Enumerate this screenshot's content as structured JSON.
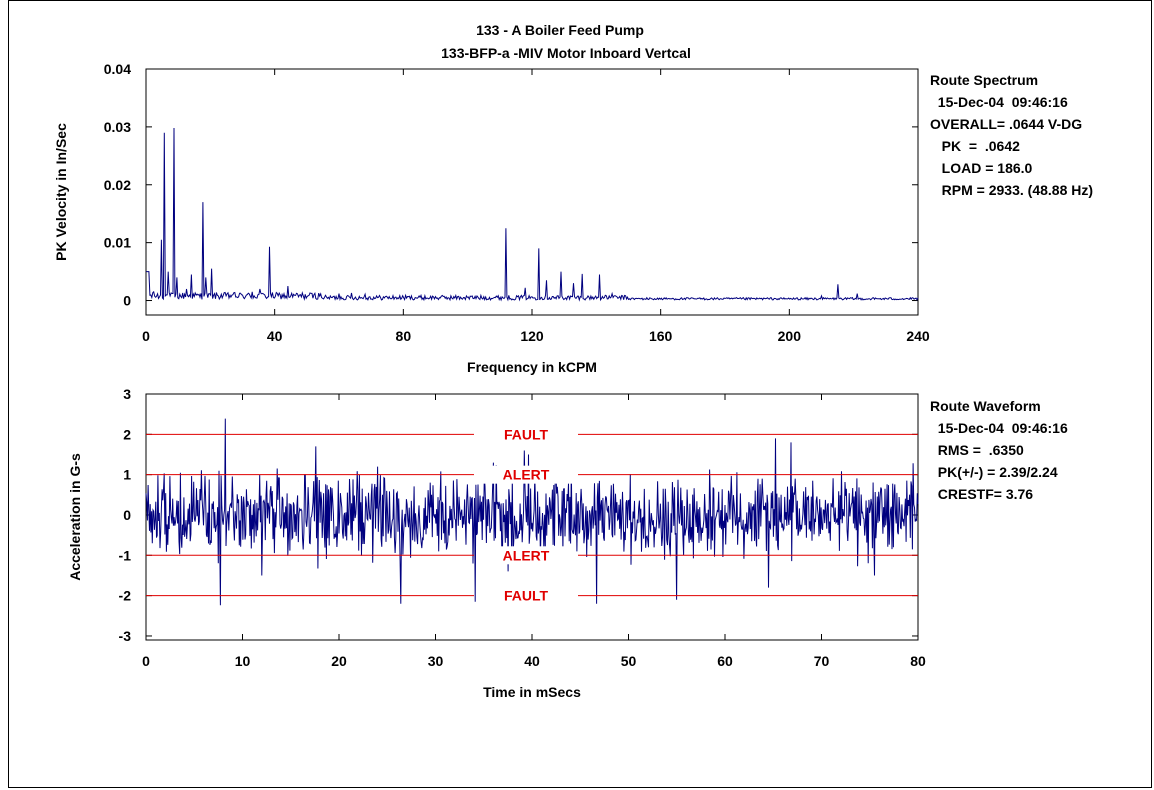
{
  "title_line1": "133  - A Boiler Feed Pump",
  "title_line2": "133-BFP-a -MIV   Motor Inboard Vertcal",
  "colors": {
    "trace": "#00007f",
    "limit": "#e00000",
    "axis": "#000000"
  },
  "chart_data": [
    {
      "type": "line",
      "name": "spectrum",
      "xlabel": "Frequency in kCPM",
      "ylabel": "PK Velocity in In/Sec",
      "xlim": [
        0,
        240
      ],
      "ylim": [
        -0.0025,
        0.04
      ],
      "xticks": [
        0,
        40,
        80,
        120,
        160,
        200,
        240
      ],
      "xtick_labels": [
        "0",
        "40",
        "80",
        "120",
        "160",
        "200",
        "240"
      ],
      "yticks": [
        0,
        0.01,
        0.02,
        0.03,
        0.04
      ],
      "ytick_labels": [
        "0",
        "0.01",
        "0.02",
        "0.03",
        "0.04"
      ],
      "peaks": [
        [
          1.0,
          0.0045
        ],
        [
          2.5,
          0.0015
        ],
        [
          4.8,
          0.0105
        ],
        [
          5.8,
          0.029
        ],
        [
          6.8,
          0.005
        ],
        [
          8.7,
          0.0298
        ],
        [
          9.6,
          0.004
        ],
        [
          12.5,
          0.002
        ],
        [
          14.0,
          0.0045
        ],
        [
          17.6,
          0.017
        ],
        [
          18.6,
          0.004
        ],
        [
          20.5,
          0.0055
        ],
        [
          27.0,
          0.001
        ],
        [
          33.0,
          0.0015
        ],
        [
          35.5,
          0.002
        ],
        [
          38.5,
          0.0093
        ],
        [
          44.0,
          0.0025
        ],
        [
          60.0,
          0.0012
        ],
        [
          64.0,
          0.0013
        ],
        [
          68.0,
          0.0011
        ],
        [
          112.0,
          0.0125
        ],
        [
          118.0,
          0.0022
        ],
        [
          122.0,
          0.009
        ],
        [
          124.5,
          0.0035
        ],
        [
          129.0,
          0.005
        ],
        [
          133.0,
          0.003
        ],
        [
          135.5,
          0.0046
        ],
        [
          141.0,
          0.0045
        ],
        [
          145.0,
          0.0012
        ],
        [
          210.0,
          0.0008
        ],
        [
          215.0,
          0.0028
        ],
        [
          221.0,
          0.0012
        ]
      ],
      "info_lines": [
        "Route Spectrum",
        "  15-Dec-04  09:46:16",
        "OVERALL= .0644 V-DG",
        "   PK  =  .0642",
        "   LOAD = 186.0",
        "   RPM = 2933. (48.88 Hz)"
      ]
    },
    {
      "type": "line",
      "name": "waveform",
      "xlabel": "Time in mSecs",
      "ylabel": "Acceleration in G-s",
      "xlim": [
        0,
        80
      ],
      "ylim": [
        -3.1,
        3.0
      ],
      "xticks": [
        0,
        10,
        20,
        30,
        40,
        50,
        60,
        70,
        80
      ],
      "xtick_labels": [
        "0",
        "10",
        "20",
        "30",
        "40",
        "50",
        "60",
        "70",
        "80"
      ],
      "yticks": [
        -3,
        -2,
        -1,
        0,
        1,
        2,
        3
      ],
      "ytick_labels": [
        "-3",
        "-2",
        "-1",
        "0",
        "1",
        "2",
        "3"
      ],
      "limits": [
        {
          "label": "FAULT",
          "value": 2.0
        },
        {
          "label": "ALERT",
          "value": 1.0
        },
        {
          "label": "ALERT",
          "value": -1.0
        },
        {
          "label": "FAULT",
          "value": -2.0
        }
      ],
      "spikes": [
        [
          8.2,
          2.39
        ],
        [
          7.7,
          -2.24
        ],
        [
          17.6,
          1.7
        ],
        [
          26.4,
          -2.2
        ],
        [
          34.1,
          -2.15
        ],
        [
          36.0,
          1.3
        ],
        [
          39.2,
          1.6
        ],
        [
          39.6,
          1.5
        ],
        [
          37.5,
          -1.4
        ],
        [
          42.5,
          1.2
        ],
        [
          44.1,
          1.2
        ],
        [
          46.7,
          -2.2
        ],
        [
          55.0,
          -2.1
        ],
        [
          64.5,
          -1.8
        ],
        [
          65.2,
          1.9
        ],
        [
          66.8,
          1.8
        ],
        [
          75.5,
          -1.5
        ],
        [
          12.0,
          -1.5
        ],
        [
          24.0,
          1.2
        ]
      ],
      "info_lines": [
        "Route Waveform",
        "  15-Dec-04  09:46:16",
        "  RMS =  .6350",
        "  PK(+/-) = 2.39/2.24",
        "  CRESTF= 3.76"
      ]
    }
  ]
}
